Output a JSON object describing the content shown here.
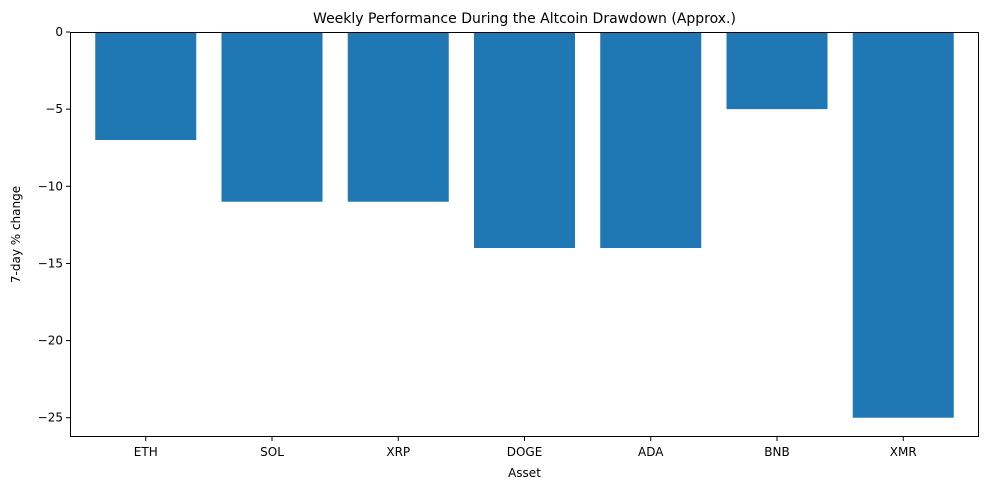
{
  "chart_data": {
    "type": "bar",
    "title": "Weekly Performance During the Altcoin Drawdown (Approx.)",
    "xlabel": "Asset",
    "ylabel": "7-day % change",
    "categories": [
      "ETH",
      "SOL",
      "XRP",
      "DOGE",
      "ADA",
      "BNB",
      "XMR"
    ],
    "values": [
      -7,
      -11,
      -11,
      -14,
      -14,
      -5,
      -25
    ],
    "ylim": [
      -26.25,
      0
    ],
    "yticks": [
      0,
      -5,
      -10,
      -15,
      -20,
      -25
    ],
    "ytick_labels": [
      "0",
      "−5",
      "−10",
      "−15",
      "−20",
      "−25"
    ],
    "grid": false,
    "bar_color": "#1f77b4"
  }
}
